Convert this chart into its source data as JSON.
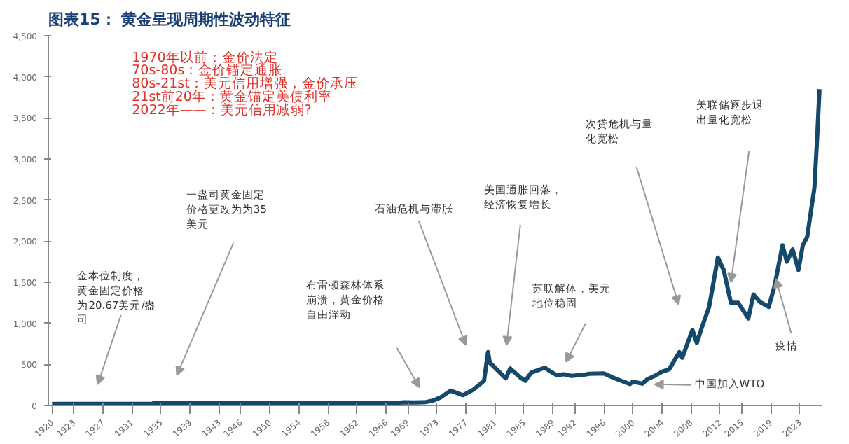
{
  "chart_data": {
    "type": "line",
    "title": "图表15：  黄金呈现周期性波动特征",
    "x": [
      1920,
      1933.9,
      1934.1,
      1967.9,
      1968.5,
      1970,
      1971.5,
      1972.5,
      1973.5,
      1974.9,
      1976.6,
      1978,
      1979.5,
      1980.05,
      1980.3,
      1981,
      1982.5,
      1983.1,
      1984.5,
      1985.2,
      1986,
      1987.9,
      1988.5,
      1989.5,
      1990.5,
      1991.5,
      1993,
      1994,
      1996,
      1997.5,
      1999.6,
      2000,
      2001.3,
      2002,
      2003,
      2004,
      2005,
      2006.4,
      2006.8,
      2008.2,
      2008.8,
      2009.5,
      2010.5,
      2011.7,
      2012.5,
      2013.5,
      2014.5,
      2015.9,
      2016.6,
      2017.5,
      2018.7,
      2019.5,
      2020.6,
      2021.2,
      2022,
      2022.8,
      2023.4,
      2024,
      2024.5,
      2025,
      2025.4,
      2025.7
    ],
    "series": [
      {
        "color": "#14496b",
        "values": [
          20,
          20,
          35,
          35,
          39,
          36,
          41,
          60,
          97,
          180,
          125,
          190,
          300,
          650,
          520,
          460,
          330,
          450,
          340,
          300,
          400,
          460,
          420,
          370,
          380,
          360,
          370,
          385,
          390,
          330,
          260,
          290,
          265,
          320,
          360,
          410,
          440,
          650,
          580,
          920,
          760,
          950,
          1200,
          1800,
          1650,
          1250,
          1250,
          1060,
          1350,
          1260,
          1200,
          1450,
          1950,
          1750,
          1900,
          1650,
          1950,
          2050,
          2350,
          2650,
          3300,
          3850
        ]
      }
    ],
    "xlim": [
      1919.5,
      2026
    ],
    "xticks": [
      1920,
      1923,
      1927,
      1931,
      1935,
      1939,
      1943,
      1946,
      1950,
      1954,
      1958,
      1962,
      1966,
      1969,
      1973,
      1977,
      1981,
      1985,
      1989,
      1992,
      1996,
      2000,
      2004,
      2008,
      2012,
      2015,
      2019,
      2023
    ],
    "ylim": [
      0,
      4500
    ],
    "yticks": [
      0,
      {
        "value": 500,
        "label": "500"
      },
      {
        "value": 1000,
        "label": "1,000"
      },
      {
        "value": 1500,
        "label": "1,500"
      },
      {
        "value": 2000,
        "label": "2,000"
      },
      {
        "value": 2500,
        "label": "2,500"
      },
      {
        "value": 3000,
        "label": "3,000"
      },
      {
        "value": 3500,
        "label": "3,500"
      },
      {
        "value": 4000,
        "label": "4,000"
      },
      {
        "value": 4500,
        "label": "4,500"
      }
    ],
    "grid": false,
    "annotations": [
      "1970年以前：金价法定",
      "70s-80s：金价锚定通胀",
      "80s-21st：美元信用增强，金价承压",
      "21st前20年：黄金锚定美债利率",
      "2022年——：美元信用减弱?",
      "金本位制度，黄金固定价格为20.67美元/盎司",
      "一盎司黄金固定价格更改为为35美元",
      "布雷顿森林体系崩溃，黄金价格自由浮动",
      "石油危机与滞胀",
      "美国通胀回落，经济恢复增长",
      "苏联解体，美元地位稳固",
      "次贷危机与量化宽松",
      "美联储逐步退出量化宽松",
      {
        "text": "疫情",
        "x": 2019.7,
        "y": 1540
      },
      "中国加入WTO"
    ]
  }
}
